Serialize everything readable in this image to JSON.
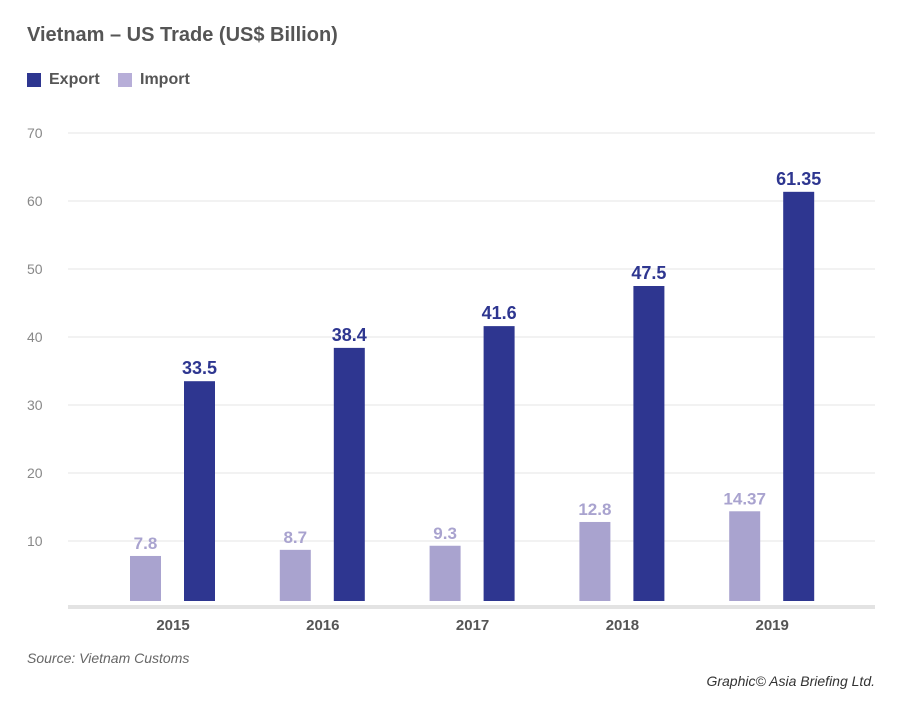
{
  "chart_data": {
    "type": "bar",
    "title": "Vietnam – US Trade (US$ Billion)",
    "categories": [
      "2015",
      "2016",
      "2017",
      "2018",
      "2019"
    ],
    "series": [
      {
        "name": "Import",
        "values": [
          7.8,
          8.7,
          9.3,
          12.8,
          14.37
        ],
        "labels": [
          "7.8",
          "8.7",
          "9.3",
          "12.8",
          "14.37"
        ],
        "color": "#a9a3cf"
      },
      {
        "name": "Export",
        "values": [
          33.5,
          38.4,
          41.6,
          47.5,
          61.35
        ],
        "labels": [
          "33.5",
          "38.4",
          "41.6",
          "47.5",
          "61.35"
        ],
        "color": "#2e3690"
      }
    ],
    "legend": [
      "Export",
      "Import"
    ],
    "legend_placement": "top-left",
    "yticks": [
      "10",
      "20",
      "30",
      "40",
      "50",
      "60",
      "70"
    ],
    "ylim": [
      0,
      70
    ],
    "grid": true,
    "xlabel": "",
    "ylabel": ""
  },
  "footer": {
    "source": "Source: Vietnam Customs",
    "credit": "Graphic© Asia Briefing Ltd."
  }
}
